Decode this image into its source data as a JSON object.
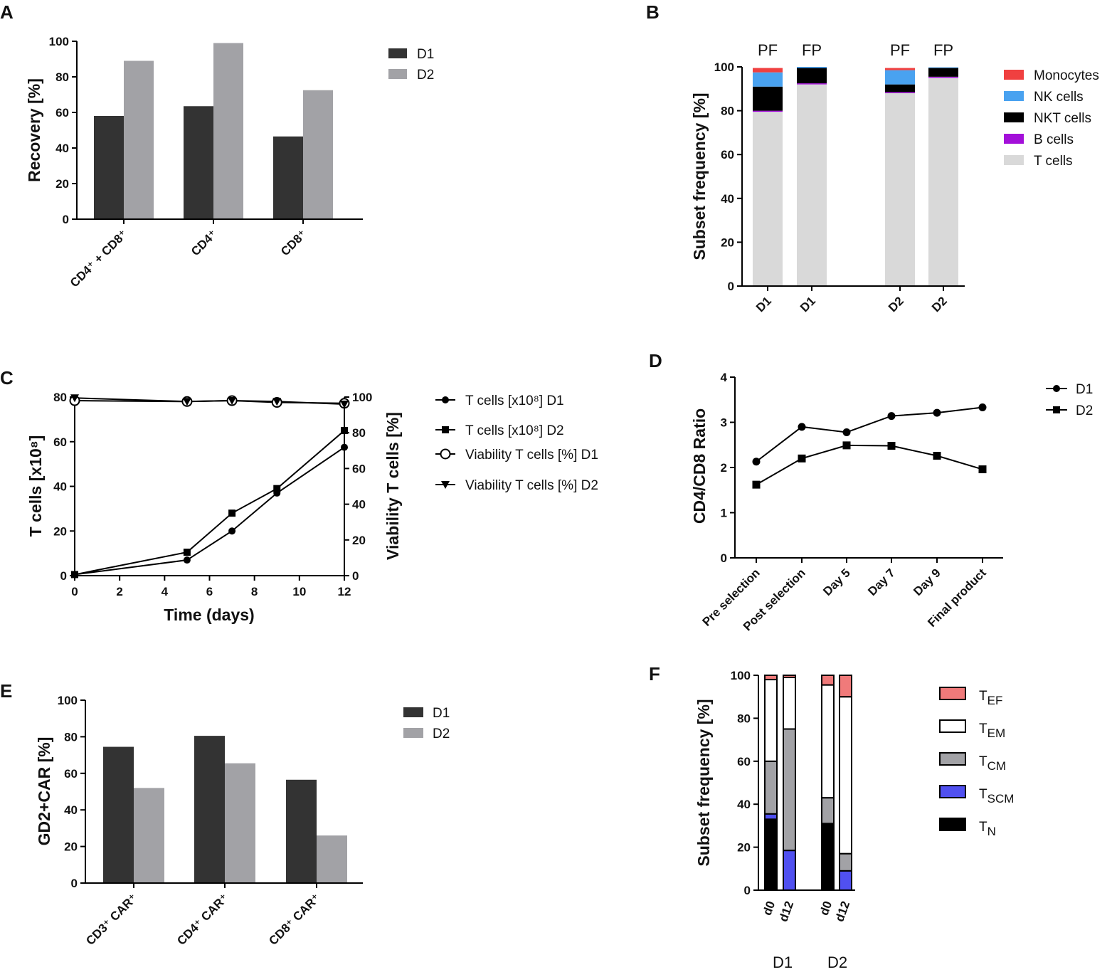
{
  "figure": {
    "background": "#ffffff"
  },
  "panel_labels": [
    "A",
    "B",
    "C",
    "D",
    "E",
    "F"
  ],
  "chart_data": [
    {
      "id": "A",
      "type": "bar",
      "ylabel": "Recovery [%]",
      "ylim": [
        0,
        100
      ],
      "yticks": [
        "0",
        "20",
        "40",
        "60",
        "80",
        "100"
      ],
      "categories": [
        "CD4⁺ + CD8⁺",
        "CD4⁺",
        "CD8⁺"
      ],
      "series": [
        {
          "name": "D1",
          "color": "#333333",
          "values": [
            58,
            63.5,
            46.5
          ]
        },
        {
          "name": "D2",
          "color": "#a2a2a6",
          "values": [
            89,
            99,
            72.5
          ]
        }
      ],
      "legend": "top-right"
    },
    {
      "id": "B",
      "type": "bar",
      "stacked": true,
      "ylabel": "Subset frequency [%]",
      "ylim": [
        0,
        100
      ],
      "yticks": [
        "0",
        "20",
        "40",
        "60",
        "80",
        "100"
      ],
      "bars": [
        {
          "label": "D1",
          "group": "PF",
          "values": [
            79.5,
            0.5,
            11,
            6.5,
            2
          ]
        },
        {
          "label": "D1",
          "group": "FP",
          "values": [
            92,
            0.5,
            7,
            0.5,
            0
          ]
        },
        {
          "label": "D2",
          "group": "PF",
          "values": [
            88,
            0.5,
            3.5,
            6.5,
            1
          ]
        },
        {
          "label": "D2",
          "group": "FP",
          "values": [
            95,
            0.5,
            4,
            0.3,
            0
          ]
        }
      ],
      "stack_order": [
        "T cells",
        "B cells",
        "NKT cells",
        "NK cells",
        "Monocytes"
      ],
      "legend_entries": [
        {
          "name": "Monocytes",
          "color": "#f04040"
        },
        {
          "name": "NK cells",
          "color": "#49a2f0"
        },
        {
          "name": "NKT cells",
          "color": "#000000"
        },
        {
          "name": "B cells",
          "color": "#a30fd9"
        },
        {
          "name": "T cells",
          "color": "#d9d9d9"
        }
      ],
      "legend": "top-right"
    },
    {
      "id": "C",
      "type": "line",
      "xlabel": "Time (days)",
      "ylabel_left": "T cells [x10⁸]",
      "ylabel_right": "Viability T cells [%]",
      "xlim": [
        0,
        12
      ],
      "xticks": [
        "0",
        "2",
        "4",
        "6",
        "8",
        "10",
        "12"
      ],
      "ylim_left": [
        0,
        80
      ],
      "yticks_left": [
        "0",
        "20",
        "40",
        "60",
        "80"
      ],
      "ylim_right": [
        0,
        100
      ],
      "yticks_right": [
        "0",
        "20",
        "40",
        "60",
        "80",
        "100"
      ],
      "x": [
        0,
        5,
        7,
        9,
        12
      ],
      "series": [
        {
          "name": "T cells [x10⁸] D1",
          "axis": "left",
          "marker": "circle",
          "values": [
            0.5,
            7,
            20,
            37,
            57.5
          ]
        },
        {
          "name": "T cells [x10⁸] D2",
          "axis": "left",
          "marker": "square",
          "values": [
            0.5,
            10.5,
            28,
            39,
            65
          ]
        },
        {
          "name": "Viability T cells [%] D1",
          "axis": "right",
          "marker": "open-circle",
          "values": [
            98,
            97.5,
            98,
            97,
            96.5
          ]
        },
        {
          "name": "Viability T cells [%] D2",
          "axis": "right",
          "marker": "triangle-down",
          "values": [
            99.5,
            97.5,
            98,
            97.5,
            96
          ]
        }
      ],
      "legend": "right"
    },
    {
      "id": "D",
      "type": "line",
      "ylabel": "CD4/CD8 Ratio",
      "ylim": [
        0,
        4
      ],
      "yticks": [
        "0",
        "1",
        "2",
        "3",
        "4"
      ],
      "categories": [
        "Pre selection",
        "Post selection",
        "Day 5",
        "Day 7",
        "Day 9",
        "Final product"
      ],
      "series": [
        {
          "name": "D1",
          "marker": "circle",
          "values": [
            2.13,
            2.9,
            2.78,
            3.14,
            3.21,
            3.33
          ]
        },
        {
          "name": "D2",
          "marker": "square",
          "values": [
            1.62,
            2.2,
            2.49,
            2.48,
            2.26,
            1.96
          ]
        }
      ],
      "legend": "top-right"
    },
    {
      "id": "E",
      "type": "bar",
      "ylabel": "GD2+CAR [%]",
      "ylim": [
        0,
        100
      ],
      "yticks": [
        "0",
        "20",
        "40",
        "60",
        "80",
        "100"
      ],
      "categories": [
        "CD3⁺ CAR⁺",
        "CD4⁺ CAR⁺",
        "CD8⁺ CAR⁺"
      ],
      "series": [
        {
          "name": "D1",
          "color": "#333333",
          "values": [
            74.5,
            80.5,
            56.5
          ]
        },
        {
          "name": "D2",
          "color": "#a2a2a6",
          "values": [
            52,
            65.5,
            26
          ]
        }
      ],
      "legend": "top-right"
    },
    {
      "id": "F",
      "type": "bar",
      "stacked": true,
      "ylabel": "Subset frequency [%]",
      "ylim": [
        0,
        100
      ],
      "yticks": [
        "0",
        "20",
        "40",
        "60",
        "80",
        "100"
      ],
      "bars": [
        {
          "label": "d0",
          "group": "D1",
          "values": [
            33,
            2.5,
            24.5,
            38,
            2
          ]
        },
        {
          "label": "d12",
          "group": "D1",
          "values": [
            0,
            18.5,
            56.5,
            24,
            1
          ]
        },
        {
          "label": "d0",
          "group": "D2",
          "values": [
            31,
            0,
            12,
            52.5,
            4.5
          ]
        },
        {
          "label": "d12",
          "group": "D2",
          "values": [
            0,
            9,
            8,
            73,
            10
          ]
        }
      ],
      "stack_order": [
        "TN",
        "TSCM",
        "TCM",
        "TEM",
        "TEF"
      ],
      "legend_entries": [
        {
          "name": "T",
          "sub": "EF",
          "color": "#f07a7a"
        },
        {
          "name": "T",
          "sub": "EM",
          "color": "#ffffff"
        },
        {
          "name": "T",
          "sub": "CM",
          "color": "#a2a2a6"
        },
        {
          "name": "T",
          "sub": "SCM",
          "color": "#5050f0"
        },
        {
          "name": "T",
          "sub": "N",
          "color": "#000000"
        }
      ],
      "legend": "top-right"
    }
  ]
}
